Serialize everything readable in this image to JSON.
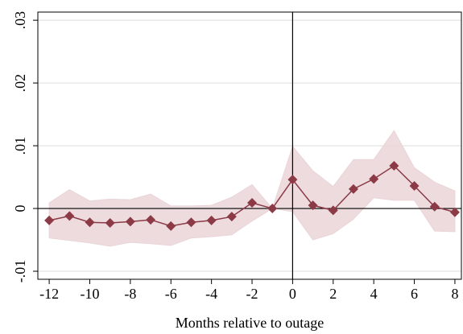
{
  "chart_data": {
    "type": "line",
    "xlabel": "Months relative to outage",
    "x": [
      -12,
      -11,
      -10,
      -9,
      -8,
      -7,
      -6,
      -5,
      -4,
      -3,
      -2,
      -1,
      0,
      1,
      2,
      3,
      4,
      5,
      6,
      7,
      8
    ],
    "values": [
      -0.0019,
      -0.0012,
      -0.0022,
      -0.0023,
      -0.0021,
      -0.0018,
      -0.0028,
      -0.0022,
      -0.0019,
      -0.0013,
      0.0009,
      0,
      0.0046,
      0.0005,
      -0.0003,
      0.0031,
      0.0047,
      0.0068,
      0.0036,
      0.0003,
      -0.0006
    ],
    "ci_upper": [
      0.0009,
      0.003,
      0.0012,
      0.0015,
      0.0014,
      0.0023,
      0.0004,
      0.0004,
      0.0005,
      0.0018,
      0.0038,
      0,
      0.0099,
      0.006,
      0.0035,
      0.0078,
      0.0078,
      0.0124,
      0.0065,
      0.0042,
      0.0028
    ],
    "ci_lower": [
      -0.0047,
      -0.0051,
      -0.0055,
      -0.006,
      -0.0054,
      -0.0056,
      -0.0059,
      -0.0047,
      -0.0045,
      -0.0042,
      -0.002,
      0,
      -0.0005,
      -0.005,
      -0.004,
      -0.0017,
      0.0017,
      0.0013,
      0.0013,
      -0.0036,
      -0.0037
    ],
    "color": "#8b3a46",
    "band_color": "#ead5d8",
    "xlim": [
      -12.56,
      8.32
    ],
    "xticks": [
      -12,
      -10,
      -8,
      -6,
      -4,
      -2,
      0,
      2,
      4,
      6,
      8
    ],
    "ylim": [
      -0.01128,
      0.0313
    ],
    "yticks": [
      {
        "value": -0.01,
        "label": "-.01"
      },
      0,
      {
        "value": 0.01,
        "label": ".01"
      },
      {
        "value": 0.02,
        "label": ".02"
      },
      {
        "value": 0.03,
        "label": ".03"
      }
    ],
    "grid": true,
    "reference_lines": {
      "x": 0,
      "y": 0
    }
  }
}
